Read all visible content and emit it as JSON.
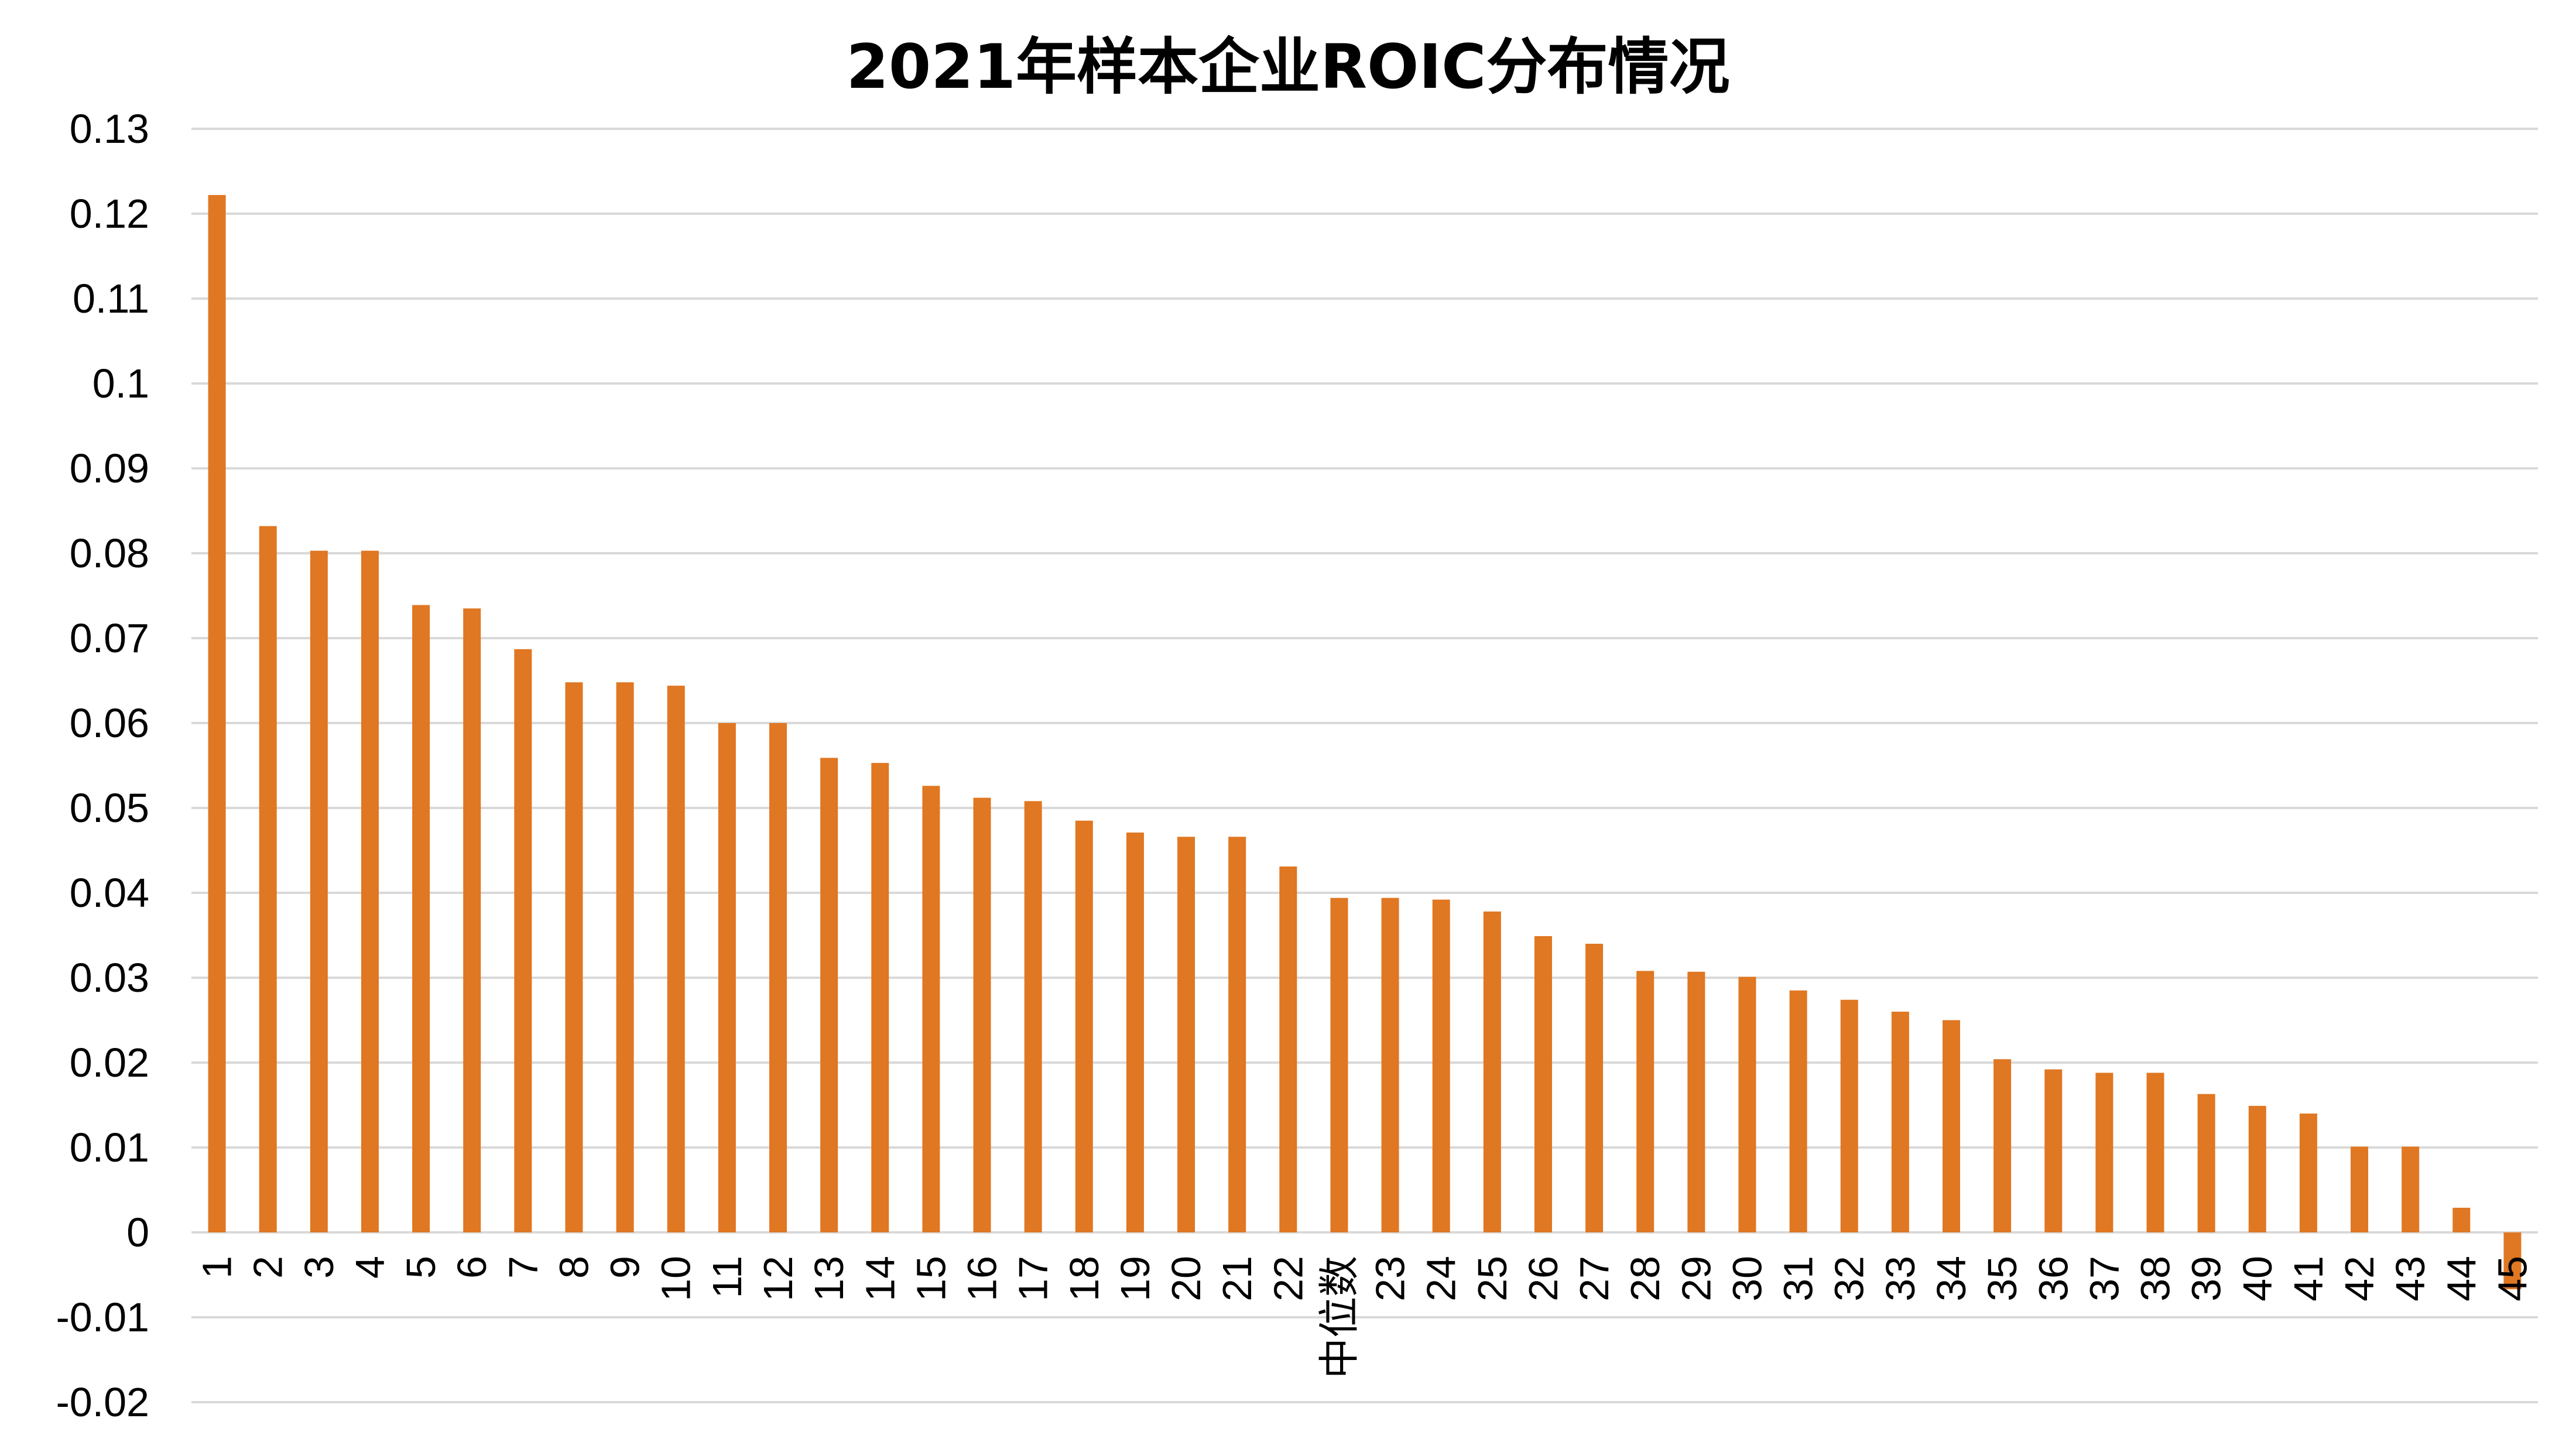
{
  "chart_data": {
    "type": "bar",
    "title": "2021年样本企业ROIC分布情况",
    "xlabel": "",
    "ylabel": "",
    "ylim": [
      -0.02,
      0.13
    ],
    "yticks": [
      0.13,
      0.12,
      0.11,
      0.1,
      0.09,
      0.08,
      0.07,
      0.06,
      0.05,
      0.04,
      0.03,
      0.02,
      0.01,
      0,
      -0.01,
      -0.02
    ],
    "ytick_labels": [
      "0.13",
      "0.12",
      "0.11",
      "0.1",
      "0.09",
      "0.08",
      "0.07",
      "0.06",
      "0.05",
      "0.04",
      "0.03",
      "0.02",
      "0.01",
      "0",
      "-0.01",
      "-0.02"
    ],
    "grid": true,
    "legend": "none",
    "bar_color": "#E07722",
    "categories": [
      "1",
      "2",
      "3",
      "4",
      "5",
      "6",
      "7",
      "8",
      "9",
      "10",
      "11",
      "12",
      "13",
      "14",
      "15",
      "16",
      "17",
      "18",
      "19",
      "20",
      "21",
      "22",
      "中位数",
      "23",
      "24",
      "25",
      "26",
      "27",
      "28",
      "29",
      "30",
      "31",
      "32",
      "33",
      "34",
      "35",
      "36",
      "37",
      "38",
      "39",
      "40",
      "41",
      "42",
      "43",
      "44",
      "45"
    ],
    "values": [
      0.1222,
      0.0832,
      0.0803,
      0.0803,
      0.0739,
      0.0735,
      0.0687,
      0.0648,
      0.0648,
      0.0644,
      0.06,
      0.06,
      0.0559,
      0.0553,
      0.0526,
      0.0512,
      0.0508,
      0.0485,
      0.0471,
      0.0466,
      0.0466,
      0.0431,
      0.0394,
      0.0394,
      0.0392,
      0.0378,
      0.0349,
      0.034,
      0.0308,
      0.0307,
      0.0301,
      0.0285,
      0.0274,
      0.026,
      0.025,
      0.0204,
      0.0192,
      0.0188,
      0.0188,
      0.0163,
      0.0149,
      0.014,
      0.0101,
      0.0101,
      0.0029,
      -0.0067
    ]
  }
}
